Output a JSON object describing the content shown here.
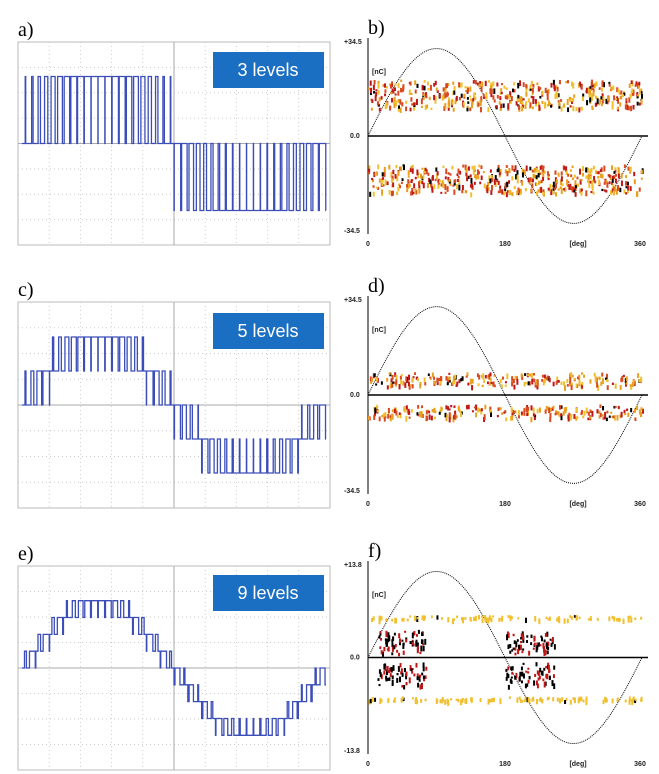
{
  "panels": [
    {
      "label": "a)",
      "badge": "3 levels"
    },
    {
      "label": "b)",
      "y_top": "+34.5",
      "y_unit": "[nC]",
      "y_mid": "0.0",
      "y_bottom": "-34.5",
      "x_ticks": [
        "0",
        "180",
        "360"
      ],
      "x_unit": "[deg]"
    },
    {
      "label": "c)",
      "badge": "5 levels"
    },
    {
      "label": "d)",
      "y_top": "+34.5",
      "y_unit": "[nC]",
      "y_mid": "0.0",
      "y_bottom": "-34.5",
      "x_ticks": [
        "0",
        "180",
        "360"
      ],
      "x_unit": "[deg]"
    },
    {
      "label": "e)",
      "badge": "9 levels"
    },
    {
      "label": "f)",
      "y_top": "+13.8",
      "y_unit": "[nC]",
      "y_mid": "0.0",
      "y_bottom": "-13.8",
      "x_ticks": [
        "0",
        "180",
        "360"
      ],
      "x_unit": "[deg]"
    }
  ]
}
